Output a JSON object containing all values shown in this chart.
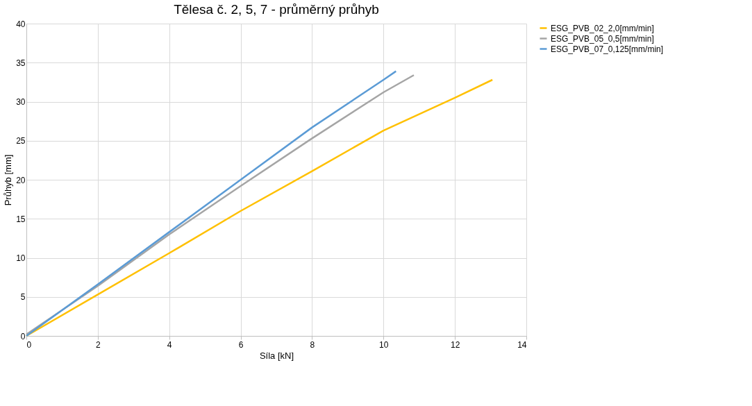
{
  "chart_data": {
    "type": "line",
    "title": "Tělesa č. 2, 5, 7 - průměrný průhyb",
    "xlabel": "Síla [kN]",
    "ylabel": "Průhyb [mm]",
    "xlim": [
      0,
      14
    ],
    "xticks": [
      0,
      2,
      4,
      6,
      8,
      10,
      12,
      14
    ],
    "ylim": [
      0,
      40
    ],
    "yticks": [
      0,
      5,
      10,
      15,
      20,
      25,
      30,
      35,
      40
    ],
    "grid": true,
    "legend": "right",
    "marker": "none",
    "line_style": "solid",
    "series": [
      {
        "name": "ESG_PVB_02_2,0[mm/min]",
        "color": "#ffc000",
        "x": [
          0,
          2,
          4,
          6,
          8,
          10,
          12,
          13.05
        ],
        "values": [
          0,
          5.3,
          10.6,
          16,
          21.1,
          26.3,
          30.5,
          32.8
        ]
      },
      {
        "name": "ESG_PVB_05_0,5[mm/min]",
        "color": "#a5a5a5",
        "x": [
          0,
          2,
          4,
          6,
          8,
          10,
          10.85
        ],
        "values": [
          0.2,
          6.4,
          13,
          19.2,
          25.3,
          31.2,
          33.4
        ]
      },
      {
        "name": "ESG_PVB_07_0,125[mm/min]",
        "color": "#5b9bd5",
        "x": [
          0,
          2,
          4,
          6,
          8,
          10,
          10.35
        ],
        "values": [
          0,
          6.6,
          13.3,
          20,
          26.7,
          32.8,
          33.9
        ]
      }
    ]
  }
}
